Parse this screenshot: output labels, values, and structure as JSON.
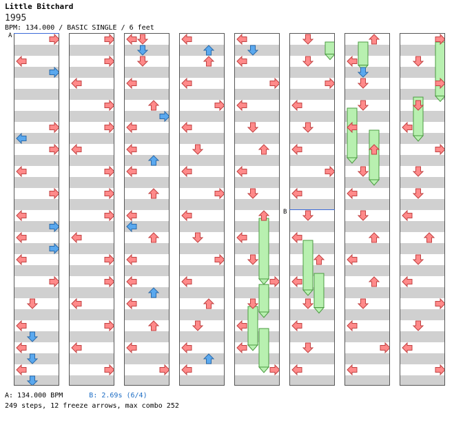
{
  "song": {
    "title": "Little Bitchard",
    "artist": "1995",
    "info": "BPM: 134.000 / BASIC SINGLE / 6 feet"
  },
  "markers": {
    "a": "A",
    "b": "B"
  },
  "footer": {
    "bpm_line": "A: 134.000 BPM",
    "change_line": "B: 2.69s (6/4)",
    "stats_line": "249 steps, 12 freeze arrows, max combo 252"
  },
  "colors": {
    "red_arrow": "#ff8a8a",
    "blue_arrow": "#5aa8ee",
    "freeze": "#b8f0b0",
    "stripe": "#d0d0d0"
  },
  "chart_data": {
    "type": "step-chart",
    "lanes": [
      "left",
      "down",
      "up",
      "right"
    ],
    "beats_per_column": 16,
    "notes": [
      [
        [
          0,
          3
        ],
        [
          1,
          0
        ],
        [
          1.5,
          3
        ],
        [
          4,
          3
        ],
        [
          4.5,
          0
        ],
        [
          5,
          3
        ],
        [
          6,
          0
        ],
        [
          7,
          3
        ],
        [
          8,
          0
        ],
        [
          8.5,
          3
        ],
        [
          9,
          0
        ],
        [
          9.5,
          3
        ],
        [
          10,
          0
        ],
        [
          11,
          3
        ],
        [
          12,
          1
        ],
        [
          13,
          0
        ],
        [
          13.5,
          1
        ],
        [
          14,
          0
        ],
        [
          14.5,
          1
        ],
        [
          15,
          0
        ],
        [
          15.5,
          1
        ]
      ],
      [
        [
          0,
          3
        ],
        [
          1,
          3
        ],
        [
          2,
          0
        ],
        [
          3,
          3
        ],
        [
          4,
          3
        ],
        [
          5,
          0
        ],
        [
          6,
          3
        ],
        [
          7,
          3
        ],
        [
          8,
          3
        ],
        [
          9,
          0
        ],
        [
          10,
          3
        ],
        [
          11,
          3
        ],
        [
          12,
          0
        ],
        [
          13,
          3
        ],
        [
          14,
          0
        ],
        [
          15,
          3
        ]
      ],
      [
        [
          0,
          0
        ],
        [
          0,
          1
        ],
        [
          0.5,
          1
        ],
        [
          1,
          1
        ],
        [
          2,
          0
        ],
        [
          3,
          2
        ],
        [
          3.5,
          3
        ],
        [
          4,
          0
        ],
        [
          5,
          0
        ],
        [
          5.5,
          2
        ],
        [
          6,
          0
        ],
        [
          7,
          2
        ],
        [
          8,
          0
        ],
        [
          8.5,
          0
        ],
        [
          9,
          2
        ],
        [
          10,
          0
        ],
        [
          11,
          0
        ],
        [
          11.5,
          2
        ],
        [
          12,
          0
        ],
        [
          13,
          2
        ],
        [
          14,
          0
        ],
        [
          15,
          3
        ]
      ],
      [
        [
          0,
          0
        ],
        [
          0.5,
          2
        ],
        [
          1,
          2
        ],
        [
          2,
          0
        ],
        [
          3,
          3
        ],
        [
          4,
          0
        ],
        [
          5,
          1
        ],
        [
          6,
          0
        ],
        [
          7,
          3
        ],
        [
          8,
          0
        ],
        [
          9,
          1
        ],
        [
          10,
          3
        ],
        [
          11,
          0
        ],
        [
          12,
          2
        ],
        [
          13,
          1
        ],
        [
          14,
          0
        ],
        [
          14.5,
          2
        ],
        [
          15,
          0
        ]
      ],
      [
        [
          0,
          0
        ],
        [
          0.5,
          1
        ],
        [
          1,
          0
        ],
        [
          2,
          3
        ],
        [
          3,
          0
        ],
        [
          4,
          1
        ],
        [
          5,
          2
        ],
        [
          6,
          0
        ],
        [
          7,
          1
        ],
        [
          8,
          2
        ],
        [
          9,
          0
        ],
        [
          10,
          1
        ],
        [
          11,
          3
        ],
        [
          12,
          1
        ],
        [
          13,
          0
        ],
        [
          14,
          0
        ],
        [
          15,
          3
        ]
      ],
      [
        [
          0,
          1
        ],
        [
          1,
          1
        ],
        [
          2,
          3
        ],
        [
          3,
          0
        ],
        [
          4,
          1
        ],
        [
          5,
          0
        ],
        [
          6,
          3
        ],
        [
          7,
          0
        ],
        [
          8,
          1
        ],
        [
          9,
          0
        ],
        [
          10,
          2
        ],
        [
          11,
          0
        ],
        [
          12,
          1
        ],
        [
          13,
          0
        ],
        [
          14,
          1
        ],
        [
          15,
          0
        ]
      ],
      [
        [
          0,
          2
        ],
        [
          1,
          0
        ],
        [
          1.5,
          1
        ],
        [
          2,
          1
        ],
        [
          3,
          1
        ],
        [
          4,
          0
        ],
        [
          5,
          2
        ],
        [
          6,
          1
        ],
        [
          7,
          0
        ],
        [
          8,
          1
        ],
        [
          9,
          2
        ],
        [
          10,
          0
        ],
        [
          11,
          2
        ],
        [
          12,
          1
        ],
        [
          13,
          0
        ],
        [
          14,
          3
        ],
        [
          15,
          0
        ]
      ],
      [
        [
          0,
          3
        ],
        [
          1,
          1
        ],
        [
          2,
          3
        ],
        [
          3,
          1
        ],
        [
          4,
          0
        ],
        [
          5,
          3
        ],
        [
          6,
          1
        ],
        [
          7,
          1
        ],
        [
          8,
          0
        ],
        [
          9,
          2
        ],
        [
          10,
          1
        ],
        [
          11,
          0
        ],
        [
          12,
          3
        ],
        [
          13,
          1
        ],
        [
          14,
          0
        ],
        [
          15,
          3
        ]
      ]
    ],
    "freeze_arrows": [
      [
        5,
        0,
        0.8,
        3
      ],
      [
        6,
        0,
        1.3,
        1
      ],
      [
        6,
        3,
        5.5,
        0
      ],
      [
        7,
        0,
        2.7,
        3
      ],
      [
        6,
        4,
        6.5,
        2
      ],
      [
        7,
        2.5,
        4.5,
        1
      ],
      [
        4,
        8,
        11,
        2
      ],
      [
        4,
        11,
        12.5,
        2
      ],
      [
        4,
        12,
        14,
        1
      ],
      [
        4,
        13,
        15,
        2
      ],
      [
        5,
        9,
        11.5,
        1
      ],
      [
        5,
        10.5,
        12.3,
        2
      ]
    ]
  }
}
